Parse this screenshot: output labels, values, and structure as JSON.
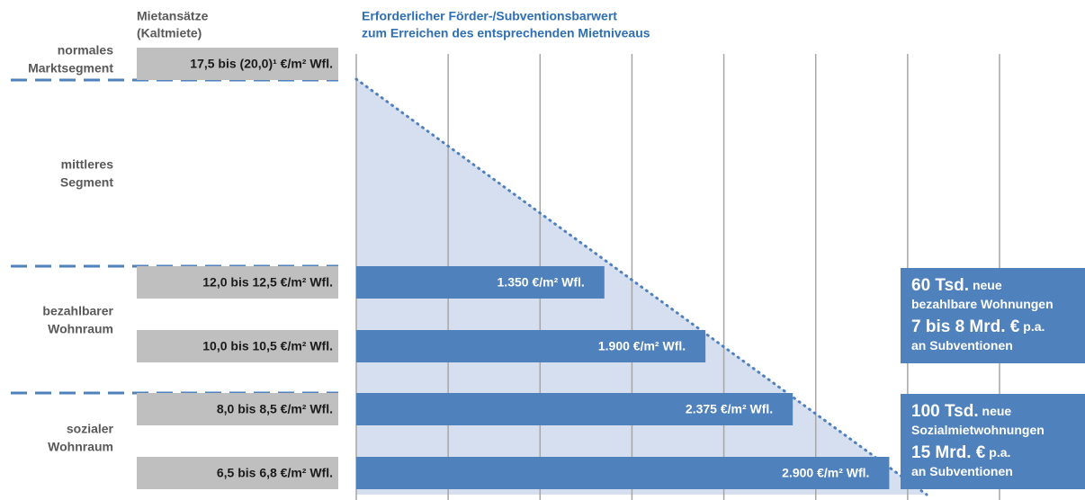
{
  "chart_data": {
    "type": "bar",
    "orientation": "horizontal",
    "header_left": [
      "Mietansätze",
      "(Kaltmiete)"
    ],
    "title": [
      "Erforderlicher Förder-/Subventionsbarwert",
      "zum Erreichen des entsprechenden Mietniveaus"
    ],
    "segments": [
      [
        "normales",
        "Marktsegment"
      ],
      [
        "mittleres",
        "Segment"
      ],
      [
        "bezahlbarer",
        "Wohnraum"
      ],
      [
        "sozialer",
        "Wohnraum"
      ]
    ],
    "categories": [
      "17,5 bis (20,0)¹ €/m² Wfl.",
      "12,0 bis 12,5  €/m² Wfl.",
      "10,0 bis 10,5  €/m² Wfl.",
      "8,0 bis 8,5 €/m² Wfl.",
      "6,5 bis 6,8 €/m² Wfl."
    ],
    "values": [
      null,
      1350,
      1900,
      2375,
      2900
    ],
    "value_labels": [
      null,
      "1.350 €/m² Wfl.",
      "1.900 €/m² Wfl.",
      "2.375 €/m² Wfl.",
      "2.900 €/m² Wfl."
    ],
    "color": "#4f81bd",
    "xlim": [
      0,
      3500
    ],
    "xticks": [
      0,
      500,
      1000,
      1500,
      2000,
      2500,
      3000,
      3500
    ],
    "grid": true,
    "annotations": [
      [
        [
          "60 Tsd.",
          " neue"
        ],
        [
          "bezahlbare Wohnungen"
        ],
        [
          "7 bis 8 Mrd. €",
          " p.a."
        ],
        [
          "an Subventionen"
        ]
      ],
      [
        [
          "100 Tsd.",
          " neue"
        ],
        [
          "Sozialmietwohnungen"
        ],
        [
          "15 Mrd. €",
          " p.a."
        ],
        [
          "an Subventionen"
        ]
      ]
    ]
  }
}
